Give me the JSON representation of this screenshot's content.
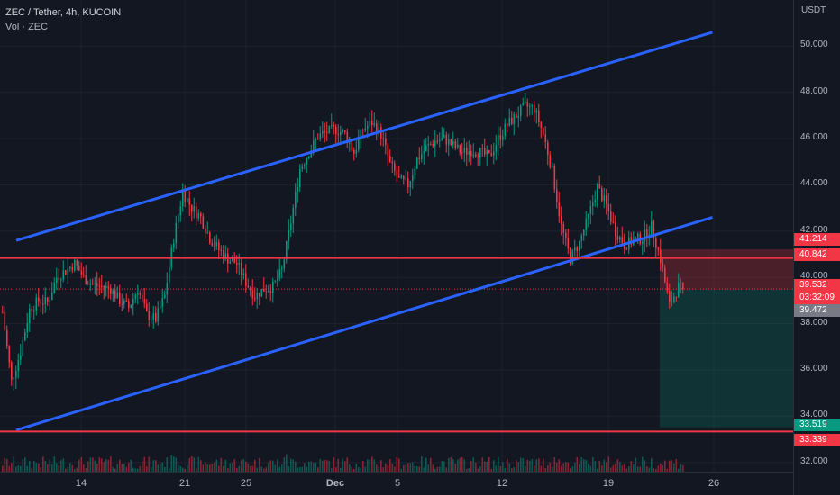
{
  "header": {
    "title": "ZEC / Tether, 4h, KUCOIN",
    "volume_label": "Vol · ZEC"
  },
  "axis": {
    "unit": "USDT"
  },
  "chart_data": {
    "type": "candlestick",
    "symbol": "ZEC / Tether",
    "interval": "4h",
    "exchange": "KUCOIN",
    "ylim": [
      31.6,
      52.0
    ],
    "y_ticks": [
      "32.000",
      "34.000",
      "36.000",
      "38.000",
      "40.000",
      "42.000",
      "44.000",
      "46.000",
      "48.000",
      "50.000"
    ],
    "x_ticks": [
      "14",
      "21",
      "25",
      "Dec",
      "5",
      "12",
      "19",
      "26"
    ],
    "price_path": [
      [
        0,
        38.5
      ],
      [
        4,
        35.5
      ],
      [
        8,
        36.8
      ],
      [
        12,
        38.6
      ],
      [
        16,
        39.0
      ],
      [
        20,
        38.9
      ],
      [
        24,
        40.0
      ],
      [
        28,
        40.3
      ],
      [
        32,
        40.6
      ],
      [
        36,
        40.0
      ],
      [
        40,
        39.7
      ],
      [
        44,
        39.6
      ],
      [
        48,
        39.5
      ],
      [
        52,
        39.0
      ],
      [
        56,
        38.7
      ],
      [
        60,
        39.5
      ],
      [
        64,
        38.4
      ],
      [
        68,
        38.2
      ],
      [
        72,
        39.2
      ],
      [
        76,
        41.7
      ],
      [
        80,
        43.7
      ],
      [
        84,
        43.0
      ],
      [
        88,
        42.6
      ],
      [
        92,
        41.7
      ],
      [
        96,
        41.2
      ],
      [
        100,
        40.8
      ],
      [
        104,
        40.6
      ],
      [
        108,
        39.8
      ],
      [
        112,
        39.2
      ],
      [
        116,
        39.5
      ],
      [
        120,
        39.6
      ],
      [
        124,
        40.3
      ],
      [
        128,
        42.4
      ],
      [
        132,
        44.7
      ],
      [
        136,
        45.4
      ],
      [
        140,
        46.1
      ],
      [
        144,
        46.3
      ],
      [
        148,
        46.4
      ],
      [
        152,
        46.2
      ],
      [
        156,
        45.4
      ],
      [
        160,
        46.4
      ],
      [
        164,
        46.7
      ],
      [
        168,
        46.2
      ],
      [
        172,
        44.9
      ],
      [
        176,
        44.2
      ],
      [
        180,
        44.0
      ],
      [
        184,
        45.1
      ],
      [
        188,
        45.6
      ],
      [
        192,
        45.9
      ],
      [
        196,
        46.0
      ],
      [
        200,
        45.7
      ],
      [
        204,
        45.4
      ],
      [
        208,
        45.5
      ],
      [
        212,
        45.4
      ],
      [
        216,
        45.2
      ],
      [
        220,
        46.0
      ],
      [
        224,
        46.6
      ],
      [
        228,
        47.0
      ],
      [
        232,
        47.4
      ],
      [
        236,
        47.3
      ],
      [
        240,
        46.2
      ],
      [
        244,
        44.6
      ],
      [
        248,
        42.2
      ],
      [
        252,
        40.8
      ],
      [
        256,
        41.5
      ],
      [
        260,
        42.6
      ],
      [
        264,
        43.9
      ],
      [
        268,
        43.1
      ],
      [
        272,
        42.0
      ],
      [
        276,
        41.4
      ],
      [
        280,
        41.6
      ],
      [
        284,
        41.7
      ],
      [
        288,
        42.2
      ],
      [
        292,
        40.8
      ],
      [
        296,
        38.8
      ],
      [
        300,
        39.6
      ],
      [
        302,
        39.5
      ]
    ],
    "last_close": 39.5,
    "annotations": {
      "channel_upper": {
        "type": "trendline",
        "color": "#2962ff",
        "from": [
          0,
          41.6
        ],
        "to": [
          309,
          50.6
        ]
      },
      "channel_lower": {
        "type": "trendline",
        "color": "#2962ff",
        "from": [
          0,
          33.4
        ],
        "to": [
          309,
          42.6
        ]
      },
      "horizontal_levels": [
        {
          "value": 40.842,
          "color": "#f23645"
        },
        {
          "value": 33.339,
          "color": "#f23645"
        }
      ],
      "short_position": {
        "entry": 39.472,
        "stop": 41.214,
        "target": 33.519,
        "start_t": 292,
        "end_t": 352
      }
    },
    "price_labels": [
      {
        "text": "41.214",
        "color": "#f23645"
      },
      {
        "text": "40.842",
        "color": "#f23645"
      },
      {
        "text": "39.532",
        "sub": "03:32:09",
        "color": "#f23645"
      },
      {
        "text": "39.472",
        "color": "#787b86"
      },
      {
        "text": "33.519",
        "color": "#089981"
      },
      {
        "text": "33.339",
        "color": "#f23645"
      }
    ],
    "colors": {
      "up": "#089981",
      "down": "#f23645",
      "channel": "#2962ff",
      "level": "#f23645",
      "background": "#131722"
    }
  }
}
